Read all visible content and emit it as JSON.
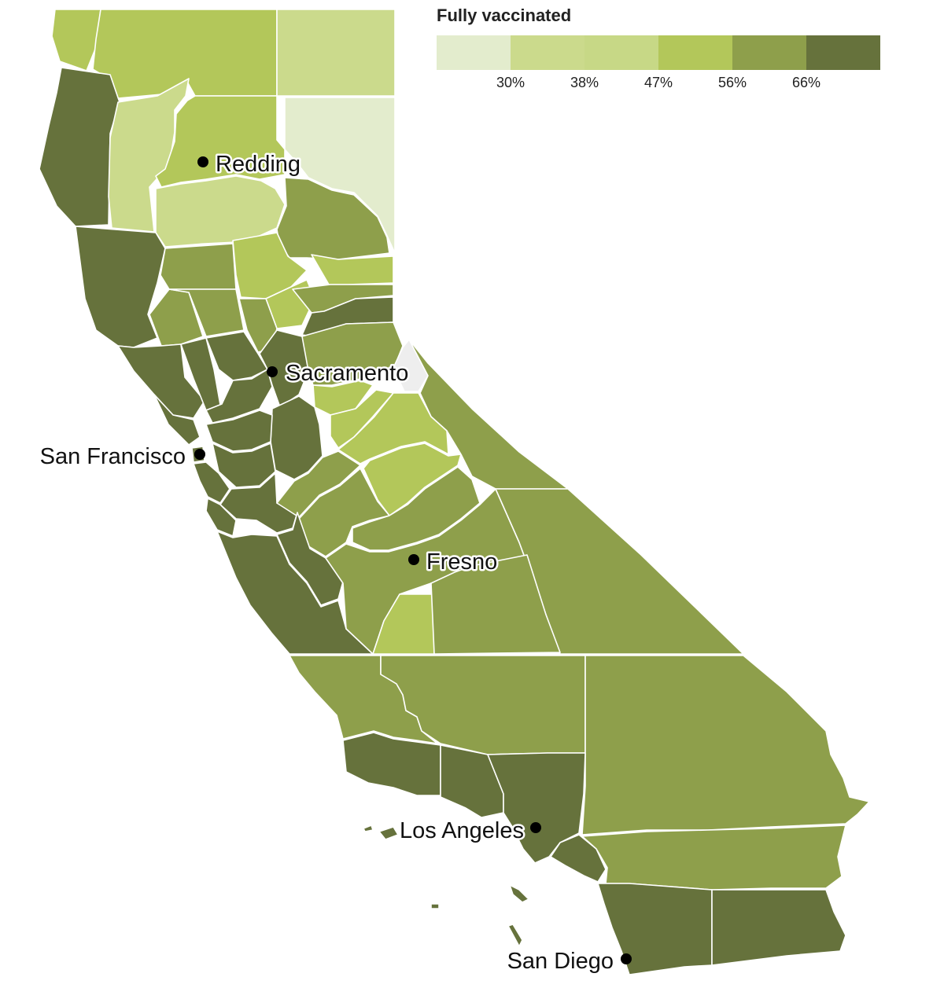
{
  "legend": {
    "title": "Fully vaccinated",
    "bins": [
      {
        "color": "#e3eccd"
      },
      {
        "color": "#cbda8c"
      },
      {
        "color": "#c7d886"
      },
      {
        "color": "#b3c75a"
      },
      {
        "color": "#8e9f4b"
      },
      {
        "color": "#66723c"
      }
    ],
    "breaks": [
      "30%",
      "38%",
      "47%",
      "56%",
      "66%"
    ]
  },
  "cities": {
    "redding": "Redding",
    "sacramento": "Sacramento",
    "san_francisco": "San Francisco",
    "fresno": "Fresno",
    "los_angeles": "Los Angeles",
    "san_diego": "San Diego"
  },
  "no_data_color": "#eeeeee"
}
